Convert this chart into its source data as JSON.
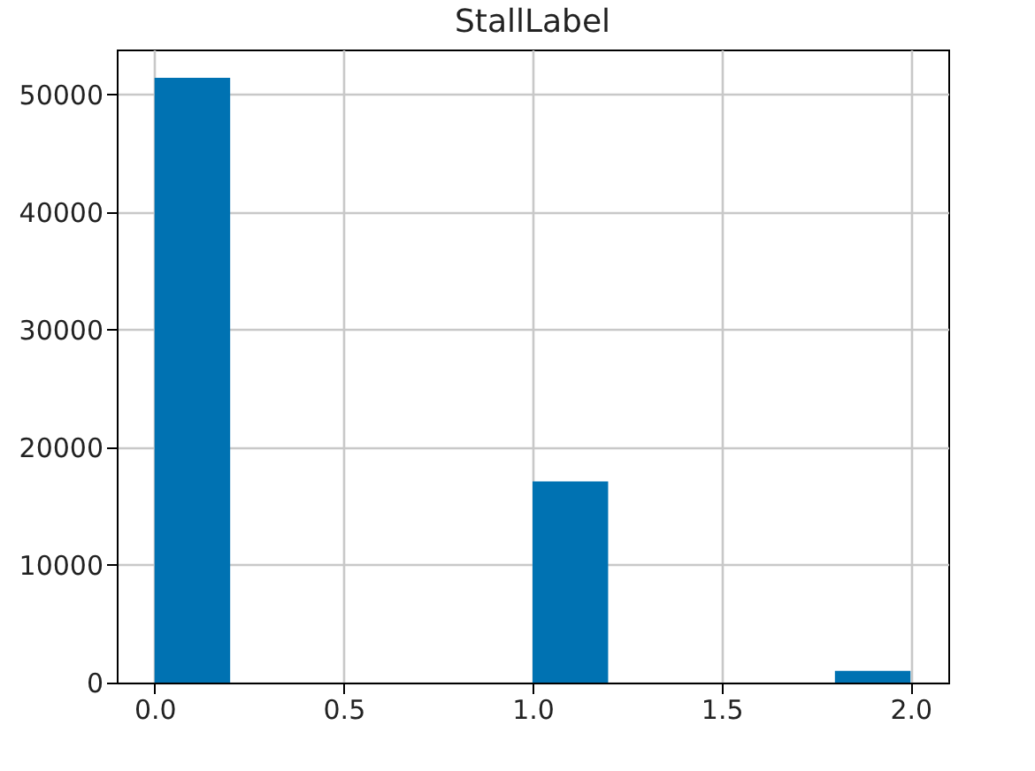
{
  "chart_data": {
    "type": "histogram",
    "title": "StallLabel",
    "bins": [
      0,
      0.2,
      0.4,
      0.6,
      0.8,
      1.0,
      1.2,
      1.4,
      1.6,
      1.8,
      2.0
    ],
    "values": [
      51400,
      0,
      0,
      0,
      0,
      17100,
      0,
      0,
      0,
      1000
    ],
    "color": "#0072b2",
    "xlim": [
      -0.1,
      2.1
    ],
    "xticks": [
      {
        "value": 0,
        "label": "0.0"
      },
      0.5,
      {
        "value": 1,
        "label": "1.0"
      },
      1.5,
      {
        "value": 2,
        "label": "2.0"
      }
    ],
    "ylim": [
      0,
      53800
    ],
    "yticks": [
      0,
      10000,
      20000,
      30000,
      40000,
      50000
    ],
    "grid": true
  }
}
